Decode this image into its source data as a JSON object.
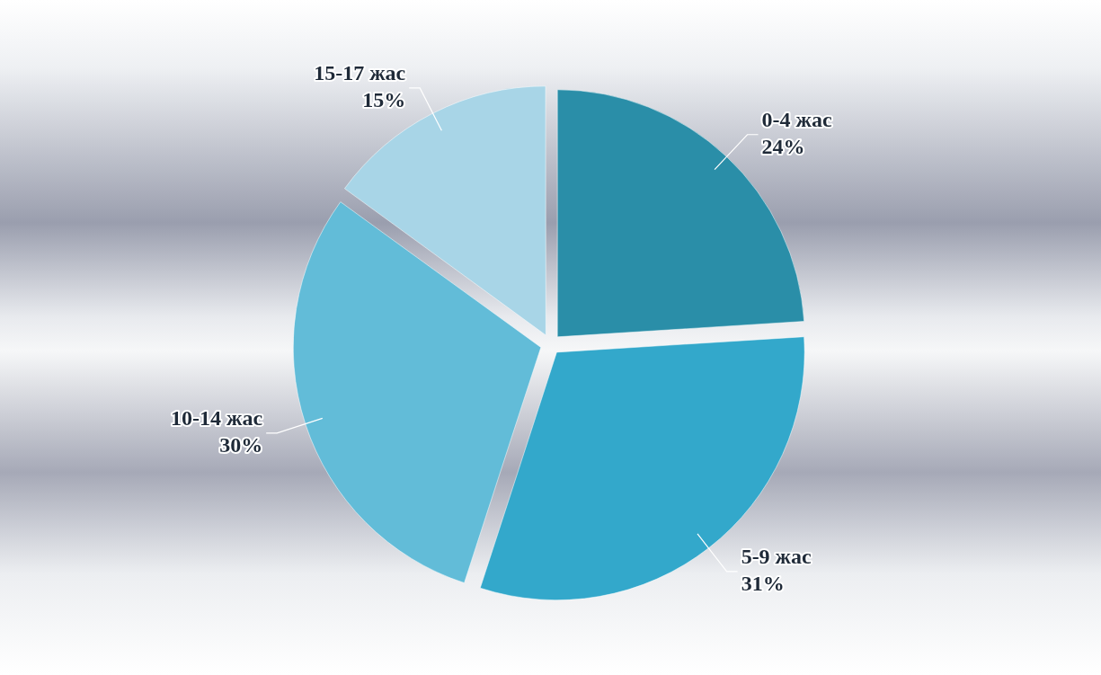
{
  "chart_data": {
    "type": "pie",
    "categories": [
      "0-4 жас",
      "5-9 жас",
      "10-14 жас",
      "15-17 жас"
    ],
    "values": [
      24,
      31,
      30,
      15
    ],
    "colors": [
      "#2a8ea8",
      "#33a8cb",
      "#62bcd8",
      "#a8d5e7"
    ],
    "value_labels": [
      "24%",
      "31%",
      "30%",
      "15%"
    ],
    "legend": false
  }
}
